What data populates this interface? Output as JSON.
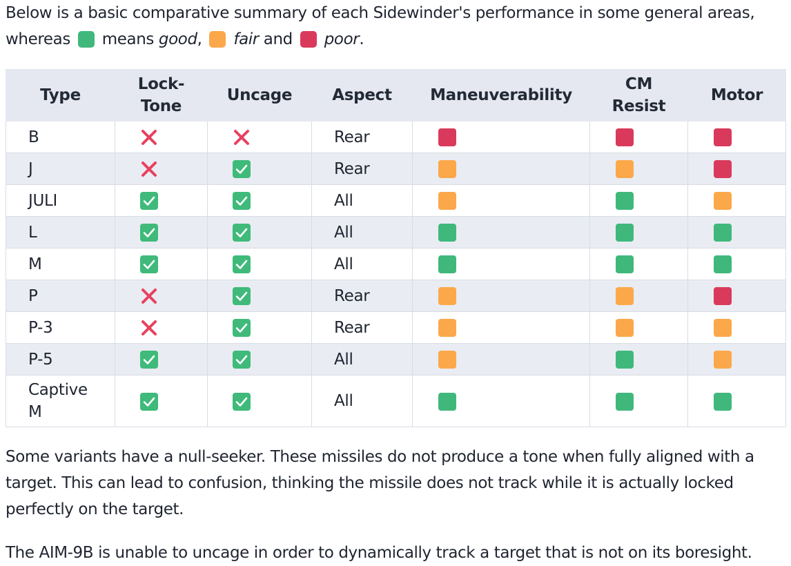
{
  "intro": {
    "line": "Below is a basic comparative summary of each Sidewinder's performance in some general areas,",
    "whereas": "whereas",
    "means": "means",
    "good": "good",
    "fair": "fair",
    "and": "and",
    "poor": "poor"
  },
  "colors": {
    "good": "#40b87c",
    "fair": "#fba84a",
    "poor": "#d93a5c",
    "check_bg": "#3fba7a",
    "cross": "#e8405f",
    "header_bg": "#e5e8f0",
    "alt_row_bg": "#e9ecf2"
  },
  "table": {
    "headers": {
      "type": "Type",
      "lock_tone": "Lock-Tone",
      "uncage": "Uncage",
      "aspect": "Aspect",
      "maneuverability": "Maneuverability",
      "cm_resist": "CM Resist",
      "motor": "Motor"
    },
    "rows": [
      {
        "type": "B",
        "lock_tone": "no",
        "uncage": "no",
        "aspect": "Rear",
        "maneuverability": "poor",
        "cm_resist": "poor",
        "motor": "poor"
      },
      {
        "type": "J",
        "lock_tone": "no",
        "uncage": "yes",
        "aspect": "Rear",
        "maneuverability": "fair",
        "cm_resist": "fair",
        "motor": "poor"
      },
      {
        "type": "JULI",
        "lock_tone": "yes",
        "uncage": "yes",
        "aspect": "All",
        "maneuverability": "fair",
        "cm_resist": "good",
        "motor": "fair"
      },
      {
        "type": "L",
        "lock_tone": "yes",
        "uncage": "yes",
        "aspect": "All",
        "maneuverability": "good",
        "cm_resist": "good",
        "motor": "good"
      },
      {
        "type": "M",
        "lock_tone": "yes",
        "uncage": "yes",
        "aspect": "All",
        "maneuverability": "good",
        "cm_resist": "good",
        "motor": "good"
      },
      {
        "type": "P",
        "lock_tone": "no",
        "uncage": "yes",
        "aspect": "Rear",
        "maneuverability": "fair",
        "cm_resist": "fair",
        "motor": "poor"
      },
      {
        "type": "P-3",
        "lock_tone": "no",
        "uncage": "yes",
        "aspect": "Rear",
        "maneuverability": "fair",
        "cm_resist": "fair",
        "motor": "fair"
      },
      {
        "type": "P-5",
        "lock_tone": "yes",
        "uncage": "yes",
        "aspect": "All",
        "maneuverability": "fair",
        "cm_resist": "good",
        "motor": "fair"
      },
      {
        "type": "Captive M",
        "lock_tone": "yes",
        "uncage": "yes",
        "aspect": "All",
        "maneuverability": "good",
        "cm_resist": "good",
        "motor": "good"
      }
    ]
  },
  "paragraphs": {
    "null_seeker": "Some variants have a null-seeker. These missiles do not produce a tone when fully aligned with a target. This can lead to confusion, thinking the missile does not track while it is actually locked perfectly on the target.",
    "aim9b": "The AIM-9B is unable to uncage in order to dynamically track a target that is not on its boresight."
  }
}
